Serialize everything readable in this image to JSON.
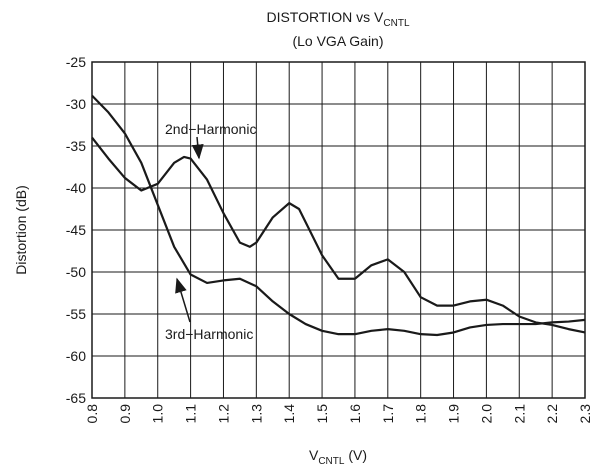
{
  "chart_data": {
    "type": "line",
    "title": [
      "DISTORTION vs V",
      "CNTL"
    ],
    "subtitle": "(Lo VGA Gain)",
    "xlabel": [
      "V",
      "CNTL",
      " (V)"
    ],
    "ylabel": "Distortion (dB)",
    "xlim": [
      0.8,
      2.3
    ],
    "xticks": [
      0.8,
      0.9,
      {
        "value": 1,
        "label": "1.0"
      },
      1.1,
      1.2,
      1.3,
      1.4,
      1.5,
      1.6,
      1.7,
      1.8,
      1.9,
      {
        "value": 2,
        "label": "2.0"
      },
      2.1,
      2.2,
      2.3
    ],
    "ylim": [
      -65,
      -25
    ],
    "yticks": [
      -65,
      -60,
      -55,
      -50,
      -45,
      -40,
      -35,
      -30,
      -25
    ],
    "grid": true,
    "series": [
      {
        "name": "2nd−Harmonic",
        "color": "#1a1a1a",
        "x": [
          0.8,
          0.85,
          0.9,
          0.95,
          1.0,
          1.05,
          1.08,
          1.1,
          1.15,
          1.2,
          1.25,
          1.28,
          1.3,
          1.35,
          1.4,
          1.43,
          1.5,
          1.55,
          1.6,
          1.65,
          1.7,
          1.75,
          1.8,
          1.85,
          1.9,
          1.95,
          2.0,
          2.05,
          2.1,
          2.15,
          2.2,
          2.25,
          2.3
        ],
        "values": [
          -34,
          -36.5,
          -38.8,
          -40.3,
          -39.5,
          -37,
          -36.3,
          -36.5,
          -39,
          -43,
          -46.5,
          -47,
          -46.5,
          -43.5,
          -41.8,
          -42.5,
          -48,
          -50.8,
          -50.8,
          -49.2,
          -48.5,
          -50,
          -53,
          -54,
          -54,
          -53.5,
          -53.3,
          -54,
          -55.3,
          -56,
          -56.3,
          -56.8,
          -57.2
        ]
      },
      {
        "name": "3rd−Harmonic",
        "color": "#1a1a1a",
        "x": [
          0.8,
          0.85,
          0.9,
          0.95,
          1.0,
          1.05,
          1.1,
          1.15,
          1.2,
          1.25,
          1.3,
          1.35,
          1.4,
          1.45,
          1.5,
          1.55,
          1.6,
          1.65,
          1.7,
          1.75,
          1.8,
          1.85,
          1.9,
          1.95,
          2.0,
          2.05,
          2.1,
          2.15,
          2.2,
          2.25,
          2.3
        ],
        "values": [
          -29,
          -31,
          -33.5,
          -37,
          -42,
          -47,
          -50.3,
          -51.3,
          -51,
          -50.8,
          -51.7,
          -53.5,
          -55,
          -56.2,
          -57,
          -57.4,
          -57.4,
          -57,
          -56.8,
          -57,
          -57.4,
          -57.5,
          -57.2,
          -56.6,
          -56.3,
          -56.2,
          -56.2,
          -56.2,
          -56,
          -55.9,
          -55.7
        ]
      }
    ]
  }
}
